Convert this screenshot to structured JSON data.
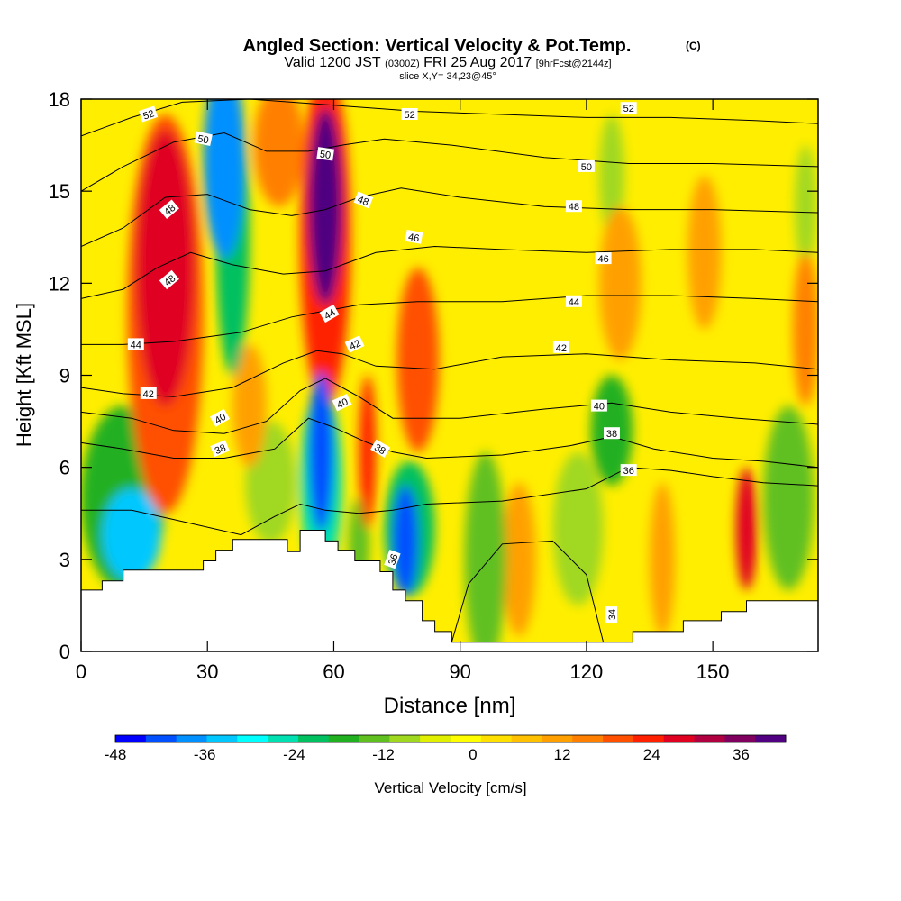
{
  "chart_data": {
    "type": "heatmap",
    "title": "Angled Section: Vertical Velocity & Pot.Temp.",
    "title_units": "(C)",
    "subtitle_prefix": "Valid 1200 JST",
    "subtitle_utc": "(0300Z)",
    "subtitle_date": "FRI 25 Aug 2017",
    "subtitle_fcst": "[9hrFcst@2144z]",
    "slice_label": "slice X,Y= 34,23@45°",
    "xlabel": "Distance [nm]",
    "ylabel": "Height [Kft MSL]",
    "xlim": [
      0,
      175
    ],
    "ylim": [
      0,
      18
    ],
    "xticks": [
      0,
      30,
      60,
      90,
      120,
      150
    ],
    "yticks": [
      0,
      3,
      6,
      9,
      12,
      15,
      18
    ],
    "colorbar": {
      "label": "Vertical Velocity [cm/s]",
      "min": -48,
      "max": 42,
      "tick_values": [
        -48,
        -36,
        -24,
        -12,
        0,
        12,
        24,
        36
      ],
      "colors": [
        "#0000ff",
        "#0050ff",
        "#0090ff",
        "#00c8ff",
        "#00ffff",
        "#00e0b0",
        "#00c060",
        "#20b020",
        "#60c020",
        "#a0d820",
        "#e0f000",
        "#ffff00",
        "#ffe000",
        "#ffc000",
        "#ffa000",
        "#ff8000",
        "#ff5000",
        "#ff2000",
        "#e00020",
        "#b00040",
        "#800060",
        "#500080"
      ]
    },
    "terrain_profile": [
      [
        0,
        2.0
      ],
      [
        5,
        2.0
      ],
      [
        5,
        2.3
      ],
      [
        10,
        2.3
      ],
      [
        10,
        2.65
      ],
      [
        29,
        2.65
      ],
      [
        29,
        2.95
      ],
      [
        32,
        2.95
      ],
      [
        32,
        3.3
      ],
      [
        36,
        3.3
      ],
      [
        36,
        3.65
      ],
      [
        49,
        3.65
      ],
      [
        49,
        3.25
      ],
      [
        52,
        3.25
      ],
      [
        52,
        3.95
      ],
      [
        58,
        3.95
      ],
      [
        58,
        3.6
      ],
      [
        61,
        3.6
      ],
      [
        61,
        3.3
      ],
      [
        65,
        3.3
      ],
      [
        65,
        2.95
      ],
      [
        71,
        2.95
      ],
      [
        71,
        2.6
      ],
      [
        74,
        2.6
      ],
      [
        74,
        2.0
      ],
      [
        77,
        2.0
      ],
      [
        77,
        1.65
      ],
      [
        81,
        1.65
      ],
      [
        81,
        1.0
      ],
      [
        84,
        1.0
      ],
      [
        84,
        0.65
      ],
      [
        88,
        0.65
      ],
      [
        88,
        0.3
      ],
      [
        131,
        0.3
      ],
      [
        131,
        0.65
      ],
      [
        143,
        0.65
      ],
      [
        143,
        1.0
      ],
      [
        152,
        1.0
      ],
      [
        152,
        1.3
      ],
      [
        158,
        1.3
      ],
      [
        158,
        1.65
      ],
      [
        175,
        1.65
      ]
    ],
    "w_cells": [
      {
        "x": 20,
        "y": 12.5,
        "w": 28,
        "rx": 7,
        "ry": 4.5
      },
      {
        "x": 20,
        "y": 11.0,
        "w": 18,
        "rx": 9,
        "ry": 6.5
      },
      {
        "x": 34,
        "y": 16.0,
        "w": -38,
        "rx": 5,
        "ry": 3.2
      },
      {
        "x": 36,
        "y": 13.5,
        "w": -22,
        "rx": 4,
        "ry": 4.5
      },
      {
        "x": 58,
        "y": 14.5,
        "w": 42,
        "rx": 4,
        "ry": 3.2
      },
      {
        "x": 58,
        "y": 13.5,
        "w": 25,
        "rx": 6,
        "ry": 5.5
      },
      {
        "x": 57,
        "y": 6.5,
        "w": -40,
        "rx": 3,
        "ry": 2.6
      },
      {
        "x": 57,
        "y": 5.5,
        "w": -24,
        "rx": 5,
        "ry": 3.0
      },
      {
        "x": 77,
        "y": 3.6,
        "w": -40,
        "rx": 3,
        "ry": 1.8
      },
      {
        "x": 78,
        "y": 4.0,
        "w": -22,
        "rx": 6,
        "ry": 2.2
      },
      {
        "x": 12,
        "y": 3.8,
        "w": -32,
        "rx": 7,
        "ry": 1.5
      },
      {
        "x": 10,
        "y": 5.0,
        "w": -16,
        "rx": 10,
        "ry": 3.0
      },
      {
        "x": 158,
        "y": 4.0,
        "w": 28,
        "rx": 2.5,
        "ry": 2.0
      },
      {
        "x": 168,
        "y": 5.0,
        "w": -14,
        "rx": 6,
        "ry": 3.0
      },
      {
        "x": 126,
        "y": 7.2,
        "w": -16,
        "rx": 5,
        "ry": 1.8
      },
      {
        "x": 118,
        "y": 4.0,
        "w": -8,
        "rx": 6,
        "ry": 2.5
      },
      {
        "x": 96,
        "y": 3.0,
        "w": -12,
        "rx": 5,
        "ry": 3.5
      },
      {
        "x": 68,
        "y": 6.5,
        "w": 24,
        "rx": 2.0,
        "ry": 2.5
      },
      {
        "x": 66,
        "y": 3.5,
        "w": -12,
        "rx": 2.5,
        "ry": 1.5
      },
      {
        "x": 45,
        "y": 5.5,
        "w": -10,
        "rx": 6,
        "ry": 2.0
      },
      {
        "x": 80,
        "y": 9.5,
        "w": 18,
        "rx": 5,
        "ry": 3.0
      },
      {
        "x": 47,
        "y": 16.5,
        "w": 14,
        "rx": 6,
        "ry": 2.0
      },
      {
        "x": 126,
        "y": 15.5,
        "w": -8,
        "rx": 3,
        "ry": 2.0
      },
      {
        "x": 128,
        "y": 12.0,
        "w": 10,
        "rx": 5,
        "ry": 2.5
      },
      {
        "x": 148,
        "y": 13.0,
        "w": 10,
        "rx": 4,
        "ry": 2.5
      },
      {
        "x": 104,
        "y": 3.0,
        "w": 10,
        "rx": 4,
        "ry": 2.5
      },
      {
        "x": 138,
        "y": 3.0,
        "w": 10,
        "rx": 3,
        "ry": 2.5
      },
      {
        "x": 172,
        "y": 10.5,
        "w": 16,
        "rx": 3,
        "ry": 2.5
      },
      {
        "x": 172,
        "y": 14.5,
        "w": -8,
        "rx": 2.5,
        "ry": 2.0
      },
      {
        "x": 40,
        "y": 8.0,
        "w": 10,
        "rx": 4,
        "ry": 2.0
      }
    ],
    "theta_contours": [
      {
        "level": 34,
        "pts": [
          [
            88,
            0.3
          ],
          [
            92,
            2.2
          ],
          [
            100,
            3.5
          ],
          [
            112,
            3.6
          ],
          [
            120,
            2.5
          ],
          [
            124,
            0.3
          ]
        ]
      },
      {
        "level": 36,
        "pts": [
          [
            0,
            4.6
          ],
          [
            12,
            4.6
          ],
          [
            22,
            4.3
          ],
          [
            38,
            3.8
          ],
          [
            46,
            4.4
          ],
          [
            52,
            4.8
          ],
          [
            58,
            4.6
          ],
          [
            66,
            4.5
          ],
          [
            74,
            4.6
          ],
          [
            82,
            4.8
          ],
          [
            100,
            4.9
          ],
          [
            120,
            5.3
          ],
          [
            130,
            6.0
          ],
          [
            140,
            5.9
          ],
          [
            150,
            5.7
          ],
          [
            162,
            5.5
          ],
          [
            175,
            5.4
          ]
        ]
      },
      {
        "level": 38,
        "pts": [
          [
            0,
            6.8
          ],
          [
            10,
            6.6
          ],
          [
            22,
            6.3
          ],
          [
            34,
            6.3
          ],
          [
            46,
            6.6
          ],
          [
            54,
            7.6
          ],
          [
            60,
            7.3
          ],
          [
            68,
            6.8
          ],
          [
            74,
            6.5
          ],
          [
            82,
            6.3
          ],
          [
            100,
            6.4
          ],
          [
            116,
            6.7
          ],
          [
            126,
            7.0
          ],
          [
            136,
            6.6
          ],
          [
            150,
            6.3
          ],
          [
            162,
            6.2
          ],
          [
            175,
            6.0
          ]
        ]
      },
      {
        "level": 40,
        "pts": [
          [
            0,
            7.8
          ],
          [
            12,
            7.6
          ],
          [
            22,
            7.2
          ],
          [
            34,
            7.1
          ],
          [
            44,
            7.5
          ],
          [
            52,
            8.5
          ],
          [
            58,
            8.9
          ],
          [
            66,
            8.3
          ],
          [
            74,
            7.6
          ],
          [
            90,
            7.6
          ],
          [
            110,
            7.9
          ],
          [
            126,
            8.1
          ],
          [
            140,
            7.8
          ],
          [
            156,
            7.6
          ],
          [
            175,
            7.4
          ]
        ]
      },
      {
        "level": 42,
        "pts": [
          [
            0,
            8.6
          ],
          [
            10,
            8.4
          ],
          [
            22,
            8.3
          ],
          [
            36,
            8.6
          ],
          [
            48,
            9.4
          ],
          [
            56,
            9.8
          ],
          [
            62,
            9.7
          ],
          [
            70,
            9.3
          ],
          [
            84,
            9.2
          ],
          [
            100,
            9.6
          ],
          [
            120,
            9.7
          ],
          [
            140,
            9.5
          ],
          [
            160,
            9.4
          ],
          [
            175,
            9.2
          ]
        ]
      },
      {
        "level": 44,
        "pts": [
          [
            0,
            10.0
          ],
          [
            10,
            10.0
          ],
          [
            22,
            10.1
          ],
          [
            38,
            10.4
          ],
          [
            50,
            10.9
          ],
          [
            58,
            11.1
          ],
          [
            66,
            11.3
          ],
          [
            80,
            11.4
          ],
          [
            100,
            11.4
          ],
          [
            120,
            11.6
          ],
          [
            140,
            11.6
          ],
          [
            160,
            11.5
          ],
          [
            175,
            11.4
          ]
        ]
      },
      {
        "level": 46,
        "pts": [
          [
            0,
            11.5
          ],
          [
            10,
            11.8
          ],
          [
            18,
            12.5
          ],
          [
            26,
            13.0
          ],
          [
            36,
            12.6
          ],
          [
            48,
            12.3
          ],
          [
            58,
            12.4
          ],
          [
            70,
            13.0
          ],
          [
            84,
            13.2
          ],
          [
            100,
            13.1
          ],
          [
            120,
            13.0
          ],
          [
            140,
            13.1
          ],
          [
            160,
            13.1
          ],
          [
            175,
            13.0
          ]
        ]
      },
      {
        "level": 48,
        "pts": [
          [
            0,
            13.2
          ],
          [
            10,
            13.8
          ],
          [
            20,
            14.8
          ],
          [
            30,
            14.9
          ],
          [
            40,
            14.4
          ],
          [
            50,
            14.2
          ],
          [
            58,
            14.4
          ],
          [
            66,
            14.8
          ],
          [
            76,
            15.1
          ],
          [
            90,
            14.8
          ],
          [
            110,
            14.5
          ],
          [
            130,
            14.4
          ],
          [
            150,
            14.4
          ],
          [
            175,
            14.3
          ]
        ]
      },
      {
        "level": 50,
        "pts": [
          [
            0,
            15.0
          ],
          [
            10,
            15.8
          ],
          [
            22,
            16.6
          ],
          [
            34,
            16.9
          ],
          [
            44,
            16.3
          ],
          [
            54,
            16.3
          ],
          [
            62,
            16.5
          ],
          [
            72,
            16.7
          ],
          [
            88,
            16.5
          ],
          [
            110,
            16.1
          ],
          [
            130,
            15.9
          ],
          [
            150,
            15.9
          ],
          [
            175,
            15.8
          ]
        ]
      },
      {
        "level": 52,
        "pts": [
          [
            0,
            16.8
          ],
          [
            12,
            17.4
          ],
          [
            24,
            17.9
          ],
          [
            40,
            18.0
          ],
          [
            60,
            17.8
          ],
          [
            80,
            17.6
          ],
          [
            100,
            17.5
          ],
          [
            120,
            17.4
          ],
          [
            140,
            17.4
          ],
          [
            160,
            17.3
          ],
          [
            175,
            17.2
          ]
        ]
      }
    ],
    "contour_labels": [
      {
        "text": "52",
        "x": 16,
        "y": 17.5,
        "angle": -18
      },
      {
        "text": "50",
        "x": 29,
        "y": 16.7,
        "angle": 12
      },
      {
        "text": "48",
        "x": 21,
        "y": 14.4,
        "angle": -40
      },
      {
        "text": "48",
        "x": 21,
        "y": 12.1,
        "angle": -40
      },
      {
        "text": "44",
        "x": 13,
        "y": 10.0,
        "angle": 0
      },
      {
        "text": "42",
        "x": 16,
        "y": 8.4,
        "angle": 0
      },
      {
        "text": "40",
        "x": 33,
        "y": 7.6,
        "angle": -30
      },
      {
        "text": "38",
        "x": 33,
        "y": 6.6,
        "angle": -22
      },
      {
        "text": "50",
        "x": 58,
        "y": 16.2,
        "angle": 8
      },
      {
        "text": "48",
        "x": 67,
        "y": 14.7,
        "angle": 22
      },
      {
        "text": "46",
        "x": 79,
        "y": 13.5,
        "angle": 10
      },
      {
        "text": "44",
        "x": 59,
        "y": 11.0,
        "angle": -30
      },
      {
        "text": "42",
        "x": 65,
        "y": 10.0,
        "angle": -25
      },
      {
        "text": "40",
        "x": 62,
        "y": 8.1,
        "angle": -25
      },
      {
        "text": "38",
        "x": 71,
        "y": 6.6,
        "angle": 30
      },
      {
        "text": "36",
        "x": 74,
        "y": 3.0,
        "angle": -70
      },
      {
        "text": "52",
        "x": 78,
        "y": 17.5,
        "angle": 0
      },
      {
        "text": "52",
        "x": 130,
        "y": 17.7,
        "angle": 0
      },
      {
        "text": "50",
        "x": 120,
        "y": 15.8,
        "angle": 0
      },
      {
        "text": "48",
        "x": 117,
        "y": 14.5,
        "angle": 0
      },
      {
        "text": "46",
        "x": 124,
        "y": 12.8,
        "angle": 0
      },
      {
        "text": "44",
        "x": 117,
        "y": 11.4,
        "angle": 0
      },
      {
        "text": "42",
        "x": 114,
        "y": 9.9,
        "angle": 0
      },
      {
        "text": "40",
        "x": 123,
        "y": 8.0,
        "angle": 0
      },
      {
        "text": "38",
        "x": 126,
        "y": 7.1,
        "angle": 0
      },
      {
        "text": "36",
        "x": 130,
        "y": 5.9,
        "angle": 0
      },
      {
        "text": "34",
        "x": 126,
        "y": 1.2,
        "angle": -90
      }
    ]
  }
}
